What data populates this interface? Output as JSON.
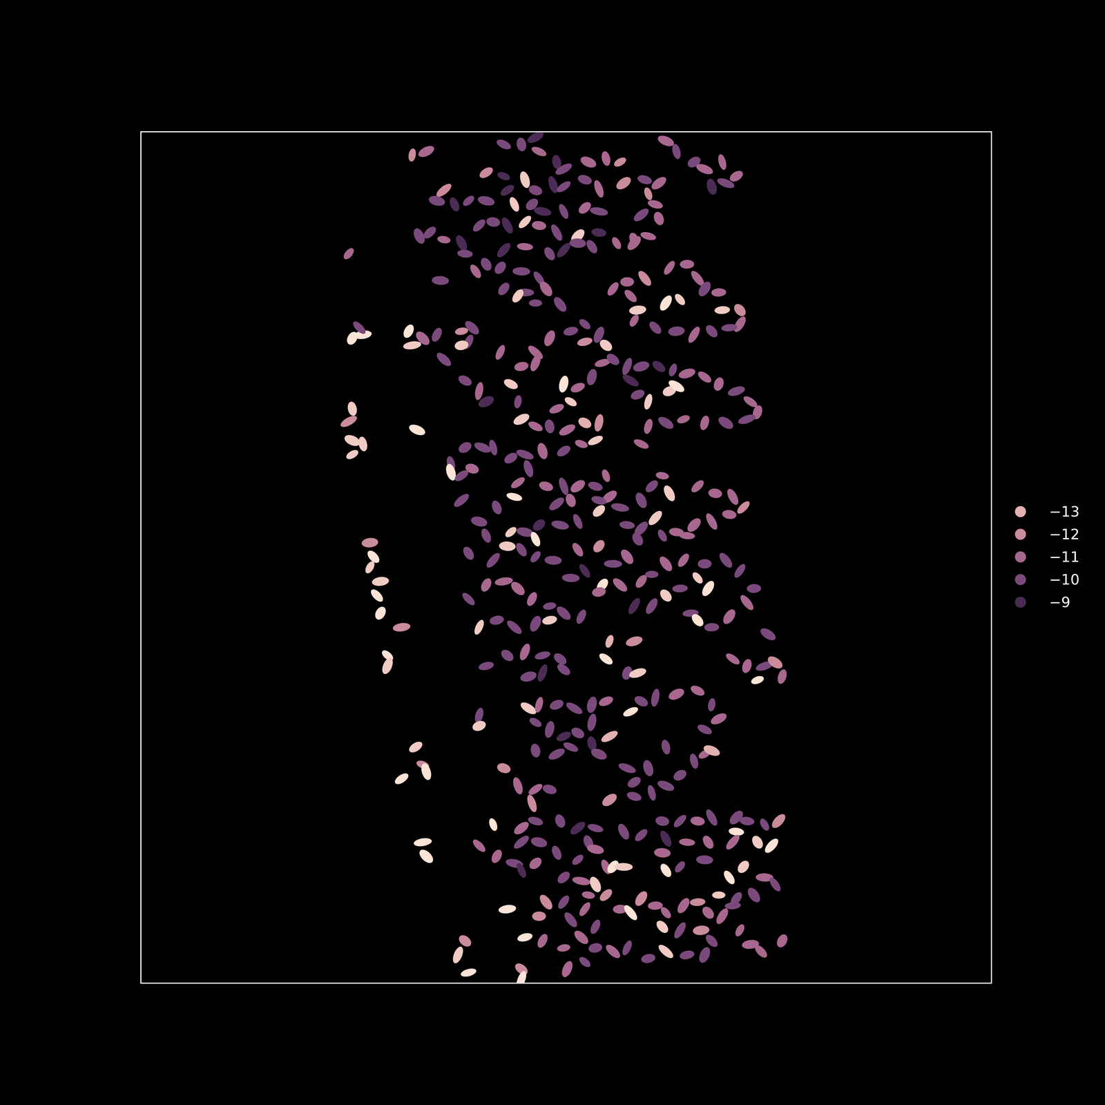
{
  "chart_data": {
    "type": "scatter",
    "x": [
      585,
      605,
      715,
      740,
      760,
      765,
      790,
      800,
      835,
      860,
      880,
      945,
      960,
      985,
      1000,
      1025,
      1045,
      1030,
      1010,
      690,
      715,
      745,
      720,
      760,
      785,
      800,
      830,
      850,
      885,
      915,
      920,
      935,
      930,
      935,
      910,
      920,
      900,
      630,
      620,
      645,
      665,
      690,
      730,
      755,
      770,
      800,
      830,
      850,
      595,
      610,
      630,
      655,
      680,
      700,
      720,
      745,
      765,
      790,
      820,
      850,
      875,
      900,
      660,
      690,
      715,
      745,
      780,
      800,
      820,
      840,
      495,
      625,
      675,
      710,
      740,
      765,
      715,
      745,
      775,
      735,
      760,
      795,
      870,
      890,
      915,
      950,
      975,
      990,
      1000,
      1020,
      965,
      945,
      1025,
      1050,
      1050,
      1035,
      1010,
      985,
      960,
      930,
      900,
      905,
      895,
      500,
      515,
      510,
      580,
      585,
      600,
      620,
      655,
      670,
      665,
      655,
      630,
      710,
      740,
      760,
      780,
      810,
      830,
      850,
      830,
      860,
      760,
      855,
      870,
      890,
      910,
      935,
      955,
      975,
      1000,
      1020,
      1045,
      1065,
      1075,
      1060,
      1030,
      1000,
      970,
      945,
      920,
      950,
      960,
      920,
      905,
      895,
      840,
      820,
      810,
      800,
      790,
      830,
      850,
      845,
      660,
      680,
      690,
      725,
      735,
      740,
      760,
      780,
      805,
      910,
      500,
      495,
      500,
      515,
      500,
      592,
      640,
      660,
      685,
      700,
      725,
      745,
      770,
      800,
      825,
      640,
      655,
      670,
      750,
      735,
      775,
      800,
      820,
      845,
      860,
      865,
      850,
      810,
      790,
      730,
      705,
      655,
      680,
      690,
      725,
      745,
      760,
      765,
      795,
      820,
      850,
      880,
      910,
      925,
      940,
      950,
      990,
      1015,
      1040,
      1055,
      1035,
      1010,
      985,
      960,
      940,
      910,
      890,
      905,
      930,
      975,
      665,
      700,
      720,
      740,
      760,
      785,
      820,
      850,
      810,
      830,
      855,
      870,
      890,
      910,
      925,
      945,
      970,
      1000,
      1030,
      1050,
      1070,
      1060,
      1035,
      1010,
      990,
      1005,
      965,
      945,
      925,
      980,
      990,
      900,
      525,
      530,
      525,
      540,
      535,
      540,
      570,
      665,
      690,
      715,
      735,
      755,
      780,
      800,
      825,
      850,
      880,
      680,
      705,
      730,
      760,
      780,
      550,
      550,
      690,
      720,
      745,
      770,
      795,
      770,
      750,
      800,
      865,
      900,
      860,
      890,
      905,
      1040,
      1060,
      1085,
      1100,
      1110,
      1075,
      1090,
      680,
      680,
      750,
      765,
      790,
      815,
      840,
      860,
      760,
      780,
      800,
      820,
      840,
      895,
      910,
      930,
      960,
      990,
      1010,
      1020,
      1000,
      760,
      790,
      810,
      840,
      865,
      850,
      945,
      1000,
      1010,
      985,
      965,
      945,
      925,
      900,
      890,
      920,
      590,
      600,
      605,
      570,
      715,
      735,
      760,
      780,
      755,
      865,
      900,
      700,
      740,
      760,
      795,
      820,
      845,
      835,
      740,
      765,
      790,
      820,
      845,
      860,
      760,
      730,
      740,
      800,
      825,
      845,
      860,
      835,
      885,
      910,
      940,
      945,
      965,
      990,
      1010,
      1045,
      1060,
      1085,
      1105,
      1045,
      1075,
      1095,
      975,
      1005,
      1040,
      940,
      945,
      965,
      1000,
      1035,
      1055,
      1085,
      1100,
      870,
      885,
      1070,
      1045,
      1020,
      775,
      800,
      765,
      810,
      830,
      880,
      895,
      910,
      930,
      945,
      970,
      990,
      1005,
      1025,
      1040,
      940,
      965,
      995,
      1010,
      1050,
      1065,
      1080,
      1110,
      720,
      680,
      705,
      600,
      605,
      770,
      800,
      825,
      845,
      845,
      870,
      890,
      920,
      945,
      1000,
      975,
      830,
      805,
      745,
      660,
      650,
      665,
      740,
      740
    ],
    "values": [
      220,
      215,
      205,
      205,
      195,
      215,
      230,
      240,
      230,
      225,
      230,
      200,
      215,
      230,
      240,
      230,
      250,
      260,
      265,
      245,
      250,
      255,
      270,
      270,
      262,
      265,
      255,
      268,
      260,
      255,
      275,
      260,
      290,
      310,
      305,
      335,
      340,
      270,
      285,
      290,
      285,
      285,
      290,
      290,
      300,
      300,
      295,
      300,
      335,
      330,
      340,
      345,
      320,
      315,
      320,
      315,
      320,
      330,
      335,
      330,
      345,
      345,
      360,
      375,
      355,
      350,
      360,
      355,
      345,
      350,
      360,
      398,
      385,
      380,
      385,
      395,
      410,
      415,
      410,
      420,
      430,
      432,
      410,
      400,
      395,
      380,
      375,
      395,
      410,
      415,
      425,
      430,
      440,
      440,
      460,
      465,
      470,
      475,
      470,
      465,
      455,
      440,
      420,
      480,
      475,
      465,
      470,
      490,
      480,
      475,
      470,
      465,
      485,
      490,
      510,
      500,
      520,
      500,
      480,
      470,
      460,
      475,
      485,
      490,
      515,
      515,
      510,
      520,
      520,
      520,
      525,
      530,
      535,
      545,
      555,
      570,
      585,
      595,
      600,
      600,
      595,
      600,
      605,
      555,
      548,
      570,
      560,
      540,
      535,
      550,
      570,
      545,
      580,
      600,
      600,
      625,
      540,
      555,
      570,
      545,
      570,
      595,
      605,
      605,
      610,
      630,
      580,
      598,
      625,
      630,
      645,
      610,
      658,
      635,
      635,
      635,
      650,
      645,
      640,
      640,
      630,
      670,
      675,
      665,
      665,
      685,
      690,
      690,
      690,
      690,
      675,
      705,
      710,
      710,
      715,
      705,
      720,
      710,
      740,
      760,
      755,
      755,
      765,
      745,
      745,
      740,
      725,
      720,
      710,
      690,
      675,
      700,
      690,
      700,
      705,
      720,
      730,
      740,
      745,
      755,
      760,
      750,
      745,
      765,
      735,
      760,
      785,
      795,
      775,
      780,
      790,
      795,
      780,
      775,
      820,
      810,
      830,
      800,
      790,
      825,
      815,
      800,
      795,
      800,
      795,
      810,
      835,
      855,
      875,
      890,
      820,
      835,
      835,
      845,
      860,
      870,
      880,
      860,
      770,
      790,
      805,
      825,
      845,
      870,
      890,
      850,
      830,
      825,
      835,
      850,
      860,
      870,
      875,
      840,
      830,
      890,
      880,
      890,
      885,
      880,
      930,
      945,
      945,
      930,
      925,
      930,
      935,
      955,
      960,
      950,
      910,
      910,
      935,
      955,
      955,
      935,
      945,
      945,
      940,
      960,
      965,
      900,
      1015,
      1030,
      1005,
      1000,
      1000,
      1005,
      1000,
      995,
      1025,
      1035,
      1045,
      1040,
      1025,
      1010,
      995,
      990,
      985,
      980,
      1000,
      1020,
      1035,
      1065,
      1070,
      1060,
      1055,
      1045,
      1070,
      1060,
      1070,
      1065,
      1080,
      1100,
      1115,
      1125,
      1110,
      1090,
      1090,
      1060,
      1085,
      1095,
      1105,
      1090,
      1115,
      1120,
      1120,
      1140,
      1135,
      1130,
      1170,
      1175,
      1165,
      1165,
      1175,
      1175,
      1195,
      1195,
      1195,
      1210,
      1220,
      1205,
      1230,
      1225,
      1225,
      1235,
      1245,
      1250,
      1255,
      1270,
      1270,
      1180,
      1185,
      1165,
      1190,
      1165,
      1165,
      1160,
      1160,
      1165,
      1170,
      1165,
      1180,
      1195,
      1200,
      1195,
      1195,
      1195,
      1210,
      1235,
      1230,
      1220,
      1245,
      1230,
      1245,
      1255,
      1230,
      1230,
      1270,
      1275,
      1270,
      1280,
      1280,
      1300,
      1305,
      1290,
      1290,
      1295,
      1275,
      1285,
      1295,
      1285,
      1280,
      1295,
      1300,
      1285,
      1315,
      1320,
      1320,
      1335,
      1320,
      1340,
      1350,
      1335,
      1290,
      1200,
      1215,
      1195,
      1215,
      1335,
      1345,
      1330,
      1315,
      1345,
      1350,
      1345,
      1360,
      1350,
      1355,
      1355,
      1365,
      1375,
      1330,
      1335,
      1355,
      1380,
      1375,
      1390
    ],
    "color_values": [
      -12,
      -11,
      -10,
      -10,
      -9,
      -11,
      -9,
      -10,
      -11,
      -11,
      -12,
      -11,
      -10,
      -10,
      -11,
      -11,
      -11,
      -10,
      -9,
      -12,
      -9,
      -13.5,
      -9,
      -10,
      -9,
      -10,
      -10,
      -11,
      -12,
      -10,
      -12,
      -11,
      -11,
      -11,
      -10,
      -11,
      -11,
      -12,
      -10,
      -9,
      -10,
      -10,
      -13.5,
      -10,
      -9,
      -10,
      -11,
      -10,
      -10,
      -10,
      -11,
      -9,
      -10,
      -10,
      -9,
      -13.5,
      -11,
      -10,
      -13.5,
      -9,
      -11,
      -11,
      -10,
      -10,
      -9,
      -11,
      -10,
      -9,
      -10,
      -10,
      -11,
      -10,
      -11,
      -10,
      -10,
      -10,
      -10,
      -10,
      -11,
      -13.5,
      -10,
      -10,
      -11,
      -11,
      -12,
      -11,
      -11,
      -11,
      -10,
      -11,
      -13.5,
      -14,
      -13.5,
      -12,
      -11,
      -10,
      -10,
      -11,
      -10,
      -10,
      -11,
      -13.5,
      -11,
      -14,
      -14,
      -10,
      -14,
      -13.5,
      -11,
      -10,
      -12,
      -10,
      -10,
      -13.5,
      -10,
      -11,
      -11,
      -11,
      -11,
      -10,
      -10,
      -10,
      -12,
      -13.5,
      -11,
      -11,
      -10,
      -10,
      -10,
      -9,
      -10,
      -11,
      -11,
      -11,
      -10,
      -11,
      -11,
      -10,
      -10,
      -11,
      -11,
      -10,
      -11,
      -13.5,
      -14,
      -13.5,
      -10,
      -9,
      -10,
      -11,
      -13.5,
      -14,
      -11,
      -13,
      -12,
      -13.5,
      -10,
      -11,
      -9,
      -13.5,
      -10,
      -13.5,
      -11,
      -10,
      -11,
      -11,
      -13.5,
      -12,
      -13.5,
      -13.5,
      -13.5,
      -14,
      -10,
      -10,
      -10,
      -10,
      -10,
      -10,
      -11,
      -10,
      -11,
      -14,
      -10,
      -11,
      -10,
      -11,
      -11,
      -10,
      -11,
      -10,
      -11,
      -11,
      -10,
      -11,
      -10,
      -14,
      -10,
      -10,
      -10,
      -10,
      -13.5,
      -10,
      -14,
      -9,
      -10,
      -10,
      -13.5,
      -10,
      -10,
      -10,
      -11,
      -13.5,
      -11,
      -11,
      -11,
      -12,
      -11,
      -11,
      -11,
      -11,
      -10,
      -10,
      -10,
      -10,
      -13.5,
      -11,
      -10,
      -10,
      -13.5,
      -10,
      -10,
      -10,
      -11,
      -12,
      -10,
      -9,
      -14,
      -10,
      -11,
      -11,
      -10,
      -11,
      -11,
      -10,
      -10,
      -10,
      -10,
      -11,
      -11,
      -10,
      -13.5,
      -14,
      -10,
      -13.5,
      -10,
      -10,
      -14,
      -9,
      -12,
      -14,
      -13.5,
      -13.5,
      -14,
      -14,
      -12,
      -10,
      -11,
      -11,
      -11,
      -11,
      -10,
      -10,
      -10,
      -11,
      -11,
      -13.5,
      -10,
      -10,
      -10,
      -13.5,
      -14,
      -13.5,
      -10,
      -10,
      -11,
      -10,
      -10,
      -9,
      -10,
      -10,
      -13,
      -12,
      -14,
      -10,
      -13.5,
      -11,
      -11,
      -10,
      -12,
      -11,
      -14,
      -10,
      -10,
      -13.5,
      -13.5,
      -11,
      -10,
      -10,
      -10,
      -11,
      -10,
      -10,
      -9,
      -10,
      -10,
      -14,
      -10,
      -10,
      -11,
      -11,
      -10,
      -11,
      -10,
      -10,
      -10,
      -10,
      -9,
      -13,
      -10,
      -10,
      -11,
      -13,
      -10,
      -10,
      -10,
      -10,
      -10,
      -10,
      -10,
      -13.5,
      -12,
      -14,
      -14,
      -12,
      -11,
      -11,
      -10,
      -12,
      -12,
      -10,
      -14,
      -11,
      -10,
      -10,
      -9,
      -10,
      -10,
      -10,
      -10,
      -10,
      -10,
      -11,
      -11,
      -11,
      -10,
      -9,
      -10,
      -11,
      -13.5,
      -12,
      -11,
      -10,
      -10,
      -10,
      -9,
      -10,
      -11,
      -10,
      -10,
      -10,
      -10,
      -12,
      -14,
      -13.5,
      -14,
      -11,
      -11,
      -11,
      -11,
      -14,
      -10,
      -10,
      -14,
      -13.5,
      -11,
      -10,
      -14,
      -13.5,
      -10,
      -10,
      -13.5,
      -12,
      -10,
      -12,
      -10,
      -11,
      -11,
      -14,
      -12,
      -11,
      -11,
      -11,
      -12,
      -11,
      -11,
      -10,
      -13.5,
      -10,
      -12,
      -10,
      -11,
      -11,
      -11,
      -11,
      -14,
      -11,
      -11,
      -14,
      -14,
      -11,
      -11,
      -11,
      -10,
      -10,
      -11,
      -10,
      -10,
      -13.5,
      -10,
      -10,
      -10,
      -11,
      -14,
      -12,
      -13.5,
      -14,
      -12,
      -14
    ],
    "xlim": [
      200,
      1407
    ],
    "ylim": [
      1395,
      187
    ],
    "tick_labels": false,
    "legend": "right",
    "color_ticks": [
      {
        "value": -13,
        "label": "−13"
      },
      {
        "value": -12,
        "label": "−12"
      },
      {
        "value": -11,
        "label": "−11"
      },
      {
        "value": -10,
        "label": "−10"
      },
      {
        "value": -9,
        "label": "−9"
      }
    ],
    "color_tick_colors": [
      "#e2b2b0",
      "#ca8b9b",
      "#a8678f",
      "#7b4a7c",
      "#4b2c55"
    ]
  }
}
